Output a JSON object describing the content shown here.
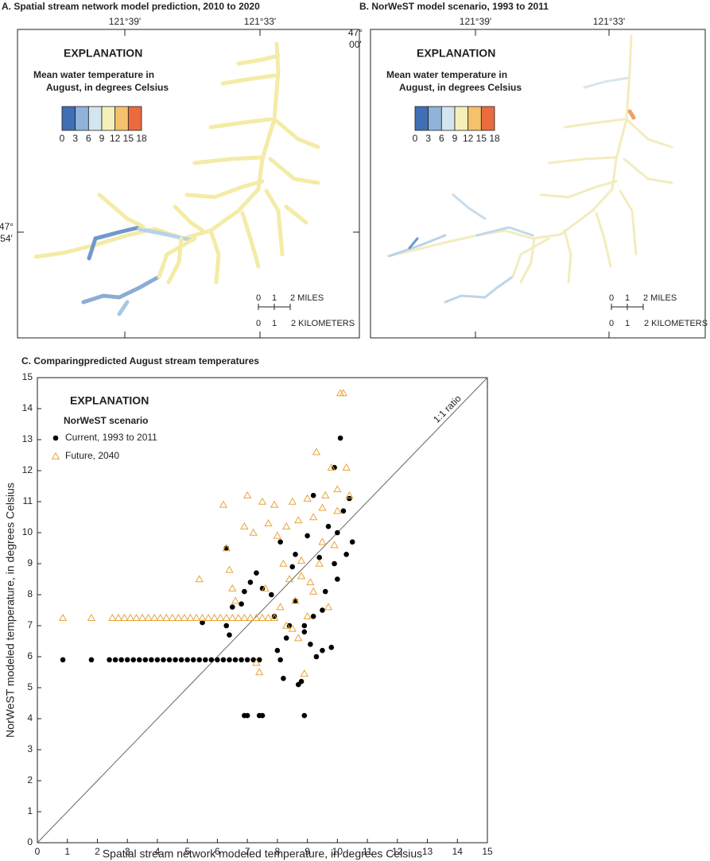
{
  "panels": [
    {
      "title": "A. Spatial stream network model prediction, 2010 to 2020",
      "lon_labels": [
        "121°39'",
        "121°33'"
      ],
      "lat_labels": [
        [
          "47°",
          "00'"
        ],
        [
          "47°",
          "54'"
        ]
      ],
      "legend_title": "EXPLANATION",
      "legend_subtitle": [
        "Mean water temperature in",
        "August, in degrees Celsius"
      ],
      "colorbar_ticks": [
        0,
        3,
        6,
        9,
        12,
        15,
        18
      ],
      "colorbar_colors": [
        "#3f6fb5",
        "#8fb3d9",
        "#d3e5ee",
        "#f5f0b8",
        "#f5c26b",
        "#ea6b3e"
      ],
      "scale_miles": [
        "0",
        "1",
        "2 MILES"
      ],
      "scale_km": [
        "0",
        "1",
        "2 KILOMETERS"
      ]
    },
    {
      "title": "B. NorWeST model scenario, 1993 to 2011",
      "lon_labels": [
        "121°39'",
        "121°33'"
      ],
      "legend_title": "EXPLANATION",
      "legend_subtitle": [
        "Mean water temperature in",
        "August, in degrees Celsius"
      ],
      "colorbar_ticks": [
        0,
        3,
        6,
        9,
        12,
        15,
        18
      ],
      "colorbar_colors": [
        "#3f6fb5",
        "#8fb3d9",
        "#d3e5ee",
        "#f5f0b8",
        "#f5c26b",
        "#ea6b3e"
      ],
      "scale_miles": [
        "0",
        "1",
        "2 MILES"
      ],
      "scale_km": [
        "0",
        "1",
        "2 KILOMETERS"
      ]
    }
  ],
  "chart_data": {
    "type": "scatter",
    "title": "C. Comparingpredicted August stream temperatures",
    "xlabel": "Spatial stream network modeled temperature, in degrees Celsius",
    "ylabel": "NorWeST modeled temperature, in degrees Celsius",
    "xlim": [
      0,
      15
    ],
    "ylim": [
      0,
      15
    ],
    "xticks": [
      0,
      1,
      2,
      3,
      4,
      5,
      6,
      7,
      8,
      9,
      10,
      11,
      12,
      13,
      14,
      15
    ],
    "yticks": [
      0,
      1,
      2,
      3,
      4,
      5,
      6,
      7,
      8,
      9,
      10,
      11,
      12,
      13,
      14,
      15
    ],
    "legend_title": "EXPLANATION",
    "legend_subtitle": "NorWeST scenario",
    "reference_line_label": "1:1 ratio",
    "series": [
      {
        "name": "Current, 1993 to 2011",
        "color": "#000000",
        "marker": "circle",
        "x": [
          0.85,
          1.8,
          2.4,
          2.6,
          2.8,
          3.0,
          3.2,
          3.4,
          3.6,
          3.8,
          4.0,
          4.2,
          4.4,
          4.6,
          4.8,
          5.0,
          5.2,
          5.4,
          5.6,
          5.8,
          6.0,
          6.2,
          6.4,
          6.6,
          6.8,
          7.0,
          7.2,
          7.4,
          6.9,
          7.0,
          7.4,
          7.5,
          8.9,
          5.5,
          6.3,
          6.4,
          6.5,
          6.8,
          6.9,
          7.1,
          7.3,
          7.5,
          7.8,
          7.9,
          8.0,
          8.1,
          8.2,
          8.3,
          8.4,
          8.5,
          8.6,
          8.7,
          8.8,
          8.9,
          9.0,
          9.1,
          9.2,
          9.2,
          9.3,
          9.4,
          9.5,
          9.6,
          9.7,
          9.8,
          9.9,
          10.0,
          10.1,
          10.2,
          10.3,
          10.4,
          10.5,
          6.3,
          8.1,
          8.6,
          9.9,
          10.0,
          9.5,
          8.9
        ],
        "y": [
          5.9,
          5.9,
          5.9,
          5.9,
          5.9,
          5.9,
          5.9,
          5.9,
          5.9,
          5.9,
          5.9,
          5.9,
          5.9,
          5.9,
          5.9,
          5.9,
          5.9,
          5.9,
          5.9,
          5.9,
          5.9,
          5.9,
          5.9,
          5.9,
          5.9,
          5.9,
          5.9,
          5.9,
          4.1,
          4.1,
          4.1,
          4.1,
          4.1,
          7.1,
          7.0,
          6.7,
          7.6,
          7.7,
          8.1,
          8.4,
          8.7,
          8.2,
          8.0,
          7.3,
          6.2,
          5.9,
          5.3,
          6.6,
          7.0,
          8.9,
          7.8,
          5.1,
          5.2,
          6.8,
          9.9,
          6.4,
          7.3,
          11.2,
          6.0,
          9.2,
          6.2,
          8.1,
          10.2,
          6.3,
          9.0,
          8.5,
          13.05,
          10.7,
          9.3,
          11.1,
          9.7,
          9.5,
          9.7,
          9.3,
          12.1,
          10.0,
          7.5,
          7.0
        ]
      },
      {
        "name": "Future, 2040",
        "color": "#e8a43a",
        "marker": "triangle",
        "x": [
          0.85,
          1.8,
          2.5,
          2.7,
          2.9,
          3.1,
          3.3,
          3.5,
          3.7,
          3.9,
          4.1,
          4.3,
          4.5,
          4.7,
          4.9,
          5.1,
          5.3,
          5.5,
          5.7,
          5.9,
          6.1,
          6.3,
          6.5,
          6.7,
          6.9,
          7.1,
          7.3,
          7.5,
          7.7,
          7.9,
          5.4,
          6.2,
          6.3,
          6.4,
          6.5,
          6.6,
          6.9,
          7.0,
          7.2,
          7.3,
          7.4,
          7.5,
          7.7,
          7.9,
          8.0,
          8.1,
          8.2,
          8.3,
          8.4,
          8.5,
          8.6,
          8.7,
          8.8,
          8.9,
          9.0,
          9.1,
          9.2,
          9.3,
          9.4,
          9.5,
          9.6,
          9.7,
          9.8,
          9.9,
          10.0,
          10.1,
          10.2,
          10.3,
          10.4,
          8.3,
          8.5,
          8.7,
          9.0,
          9.2,
          9.5,
          10.0,
          7.6,
          8.8
        ],
        "y": [
          7.25,
          7.25,
          7.25,
          7.25,
          7.25,
          7.25,
          7.25,
          7.25,
          7.25,
          7.25,
          7.25,
          7.25,
          7.25,
          7.25,
          7.25,
          7.25,
          7.25,
          7.25,
          7.25,
          7.25,
          7.25,
          7.25,
          7.25,
          7.25,
          7.25,
          7.25,
          7.25,
          7.25,
          7.25,
          7.25,
          8.5,
          10.9,
          9.5,
          8.8,
          8.2,
          7.8,
          10.2,
          11.2,
          10.0,
          5.8,
          5.5,
          11.0,
          10.3,
          10.9,
          9.9,
          7.6,
          9.0,
          10.2,
          8.5,
          11.0,
          7.8,
          10.4,
          9.1,
          5.45,
          11.1,
          8.4,
          10.5,
          12.6,
          9.0,
          10.8,
          11.2,
          7.6,
          12.1,
          9.6,
          11.4,
          14.5,
          14.5,
          12.1,
          11.2,
          7.0,
          6.9,
          6.6,
          7.3,
          8.1,
          9.7,
          10.7,
          8.2,
          8.6
        ]
      }
    ]
  }
}
